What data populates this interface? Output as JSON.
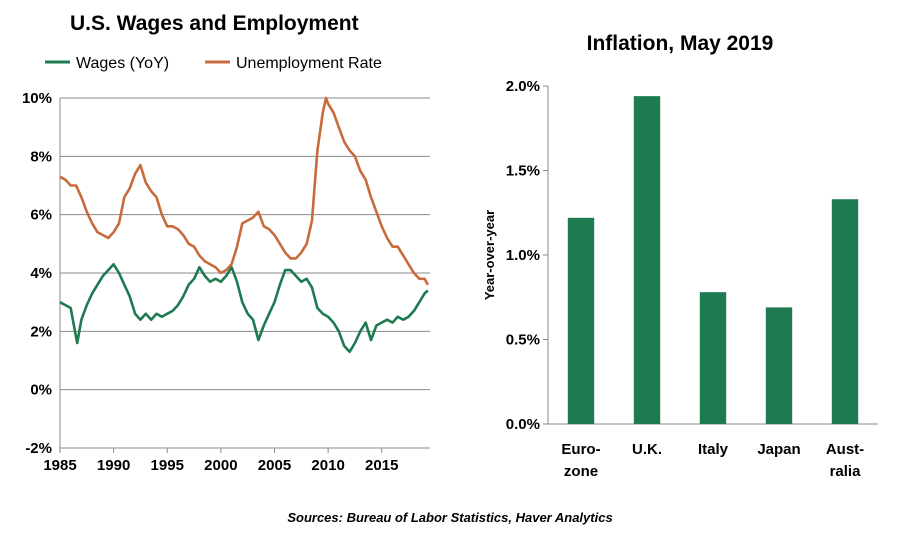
{
  "source": "Sources: Bureau of Labor Statistics, Haver Analytics",
  "chart_data": [
    {
      "type": "line",
      "title": "U.S. Wages and Employment",
      "xlim": [
        1985,
        2019.5
      ],
      "ylim": [
        -2,
        10
      ],
      "y_ticks": [
        "-2%",
        "0%",
        "2%",
        "4%",
        "6%",
        "8%",
        "10%"
      ],
      "x_ticks": [
        "1985",
        "1990",
        "1995",
        "2000",
        "2005",
        "2010",
        "2015"
      ],
      "grid": true,
      "legend": "top",
      "series": [
        {
          "name": "Wages (YoY)",
          "color": "#1e7a50",
          "x": [
            1985,
            1985.5,
            1986,
            1986.3,
            1986.6,
            1987,
            1987.5,
            1988,
            1988.5,
            1989,
            1989.5,
            1990,
            1990.5,
            1991,
            1991.5,
            1992,
            1992.5,
            1993,
            1993.5,
            1994,
            1994.5,
            1995,
            1995.5,
            1996,
            1996.5,
            1997,
            1997.5,
            1998,
            1998.5,
            1999,
            1999.5,
            2000,
            2000.5,
            2001,
            2001.5,
            2002,
            2002.5,
            2003,
            2003.5,
            2004,
            2004.5,
            2005,
            2005.5,
            2006,
            2006.5,
            2007,
            2007.5,
            2008,
            2008.5,
            2009,
            2009.5,
            2010,
            2010.5,
            2011,
            2011.5,
            2012,
            2012.5,
            2013,
            2013.5,
            2014,
            2014.5,
            2015,
            2015.5,
            2016,
            2016.5,
            2017,
            2017.5,
            2018,
            2018.5,
            2019,
            2019.3
          ],
          "y": [
            3.0,
            2.9,
            2.8,
            2.2,
            1.6,
            2.4,
            2.9,
            3.3,
            3.6,
            3.9,
            4.1,
            4.3,
            4.0,
            3.6,
            3.2,
            2.6,
            2.4,
            2.6,
            2.4,
            2.6,
            2.5,
            2.6,
            2.7,
            2.9,
            3.2,
            3.6,
            3.8,
            4.2,
            3.9,
            3.7,
            3.8,
            3.7,
            3.9,
            4.2,
            3.7,
            3.0,
            2.6,
            2.4,
            1.7,
            2.2,
            2.6,
            3.0,
            3.6,
            4.1,
            4.1,
            3.9,
            3.7,
            3.8,
            3.5,
            2.8,
            2.6,
            2.5,
            2.3,
            2.0,
            1.5,
            1.3,
            1.6,
            2.0,
            2.3,
            1.7,
            2.2,
            2.3,
            2.4,
            2.3,
            2.5,
            2.4,
            2.5,
            2.7,
            3.0,
            3.3,
            3.4
          ]
        },
        {
          "name": "Unemployment Rate",
          "color": "#c86b3c",
          "x": [
            1985,
            1985.5,
            1986,
            1986.5,
            1987,
            1987.5,
            1988,
            1988.5,
            1989,
            1989.5,
            1990,
            1990.5,
            1991,
            1991.5,
            1992,
            1992.5,
            1993,
            1993.5,
            1994,
            1994.5,
            1995,
            1995.5,
            1996,
            1996.5,
            1997,
            1997.5,
            1998,
            1998.5,
            1999,
            1999.5,
            2000,
            2000.5,
            2001,
            2001.5,
            2002,
            2002.5,
            2003,
            2003.5,
            2004,
            2004.5,
            2005,
            2005.5,
            2006,
            2006.5,
            2007,
            2007.5,
            2008,
            2008.5,
            2009,
            2009.5,
            2009.8,
            2010,
            2010.5,
            2011,
            2011.5,
            2012,
            2012.5,
            2013,
            2013.5,
            2014,
            2014.5,
            2015,
            2015.5,
            2016,
            2016.5,
            2017,
            2017.5,
            2018,
            2018.5,
            2019,
            2019.3
          ],
          "y": [
            7.3,
            7.2,
            7.0,
            7.0,
            6.6,
            6.1,
            5.7,
            5.4,
            5.3,
            5.2,
            5.4,
            5.7,
            6.6,
            6.9,
            7.4,
            7.7,
            7.1,
            6.8,
            6.6,
            6.0,
            5.6,
            5.6,
            5.5,
            5.3,
            5.0,
            4.9,
            4.6,
            4.4,
            4.3,
            4.2,
            4.0,
            4.1,
            4.3,
            4.9,
            5.7,
            5.8,
            5.9,
            6.1,
            5.6,
            5.5,
            5.3,
            5.0,
            4.7,
            4.5,
            4.5,
            4.7,
            5.0,
            5.8,
            8.2,
            9.5,
            10.0,
            9.8,
            9.5,
            9.0,
            8.5,
            8.2,
            8.0,
            7.5,
            7.2,
            6.6,
            6.1,
            5.6,
            5.2,
            4.9,
            4.9,
            4.6,
            4.3,
            4.0,
            3.8,
            3.8,
            3.6
          ]
        }
      ]
    },
    {
      "type": "bar",
      "title": "Inflation, May 2019",
      "ylabel": "Year-over-year",
      "ylim": [
        0,
        2.0
      ],
      "y_ticks": [
        "0.0%",
        "0.5%",
        "1.0%",
        "1.5%",
        "2.0%"
      ],
      "categories": [
        [
          "Euro-",
          "zone"
        ],
        [
          "U.K."
        ],
        [
          "Italy"
        ],
        [
          "Japan"
        ],
        [
          "Aust-",
          "ralia"
        ]
      ],
      "values": [
        1.22,
        1.94,
        0.78,
        0.69,
        1.33
      ],
      "color": "#1e7a50",
      "grid": false
    }
  ]
}
